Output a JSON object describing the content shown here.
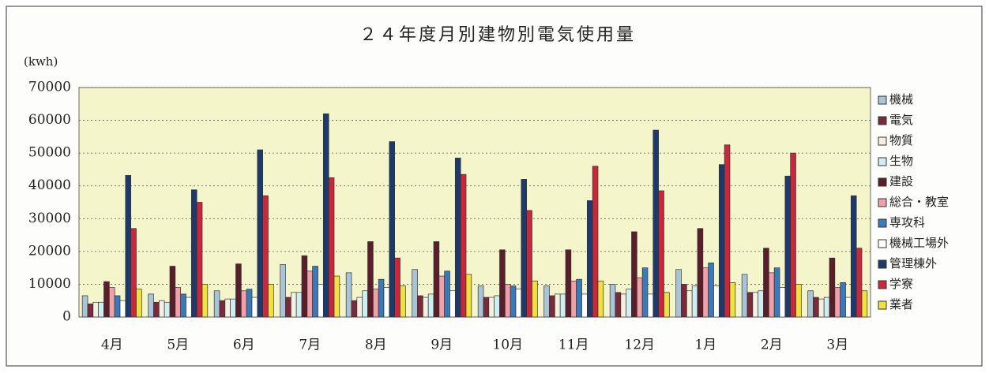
{
  "chart_data": {
    "type": "bar",
    "title": "２４年度月別建物別電気使用量",
    "y_axis_label": "(kwh)",
    "categories": [
      "4月",
      "5月",
      "6月",
      "7月",
      "8月",
      "9月",
      "10月",
      "11月",
      "12月",
      "1月",
      "2月",
      "3月"
    ],
    "series": [
      {
        "name": "機械",
        "color": "#a9c4d6",
        "values": [
          6500,
          7000,
          8000,
          16000,
          13500,
          14500,
          9500,
          9500,
          10000,
          14500,
          13000,
          8000
        ]
      },
      {
        "name": "電気",
        "color": "#7a2a3a",
        "values": [
          4000,
          4500,
          5000,
          6000,
          5000,
          6500,
          6000,
          6500,
          7500,
          10000,
          7500,
          6000
        ]
      },
      {
        "name": "物質",
        "color": "#f4f0e0",
        "values": [
          4500,
          5000,
          5500,
          7500,
          6000,
          6000,
          6000,
          7000,
          7000,
          8000,
          7500,
          5500
        ]
      },
      {
        "name": "生物",
        "color": "#cfeef4",
        "values": [
          4500,
          4500,
          5500,
          7500,
          8000,
          7000,
          6500,
          7000,
          8500,
          9500,
          8000,
          6000
        ]
      },
      {
        "name": "建設",
        "color": "#5a1e2a",
        "values": [
          10800,
          15500,
          16200,
          18700,
          23000,
          23000,
          20500,
          20500,
          26000,
          27000,
          21000,
          18000
        ]
      },
      {
        "name": "総合・教室",
        "color": "#f0a0a8",
        "values": [
          9000,
          9000,
          8000,
          14000,
          8500,
          12500,
          10000,
          11000,
          12000,
          15000,
          13500,
          9000
        ]
      },
      {
        "name": "専攻科",
        "color": "#3a7ab8",
        "values": [
          6500,
          7000,
          8500,
          15500,
          11500,
          14000,
          9500,
          11500,
          15000,
          16500,
          15000,
          10500
        ]
      },
      {
        "name": "機械工場外",
        "color": "#ffffff",
        "values": [
          5000,
          6000,
          6000,
          10000,
          9000,
          8000,
          8500,
          7000,
          7000,
          9500,
          9000,
          6000
        ]
      },
      {
        "name": "管理棟外",
        "color": "#1e3a6a",
        "values": [
          43200,
          38800,
          51000,
          62000,
          53500,
          48500,
          42000,
          35500,
          57000,
          46500,
          43000,
          37000
        ]
      },
      {
        "name": "学寮",
        "color": "#c8283c",
        "values": [
          27000,
          35000,
          37000,
          42500,
          18000,
          43500,
          32500,
          46000,
          38500,
          52500,
          50000,
          21000
        ]
      },
      {
        "name": "業者",
        "color": "#f0e040",
        "values": [
          8500,
          10000,
          10000,
          12500,
          9500,
          13000,
          11000,
          11000,
          7500,
          10500,
          10000,
          8000
        ]
      }
    ],
    "ylim": [
      0,
      70000
    ],
    "yticks": [
      0,
      10000,
      20000,
      30000,
      40000,
      50000,
      60000,
      70000
    ],
    "grid": true,
    "legend": "right"
  }
}
